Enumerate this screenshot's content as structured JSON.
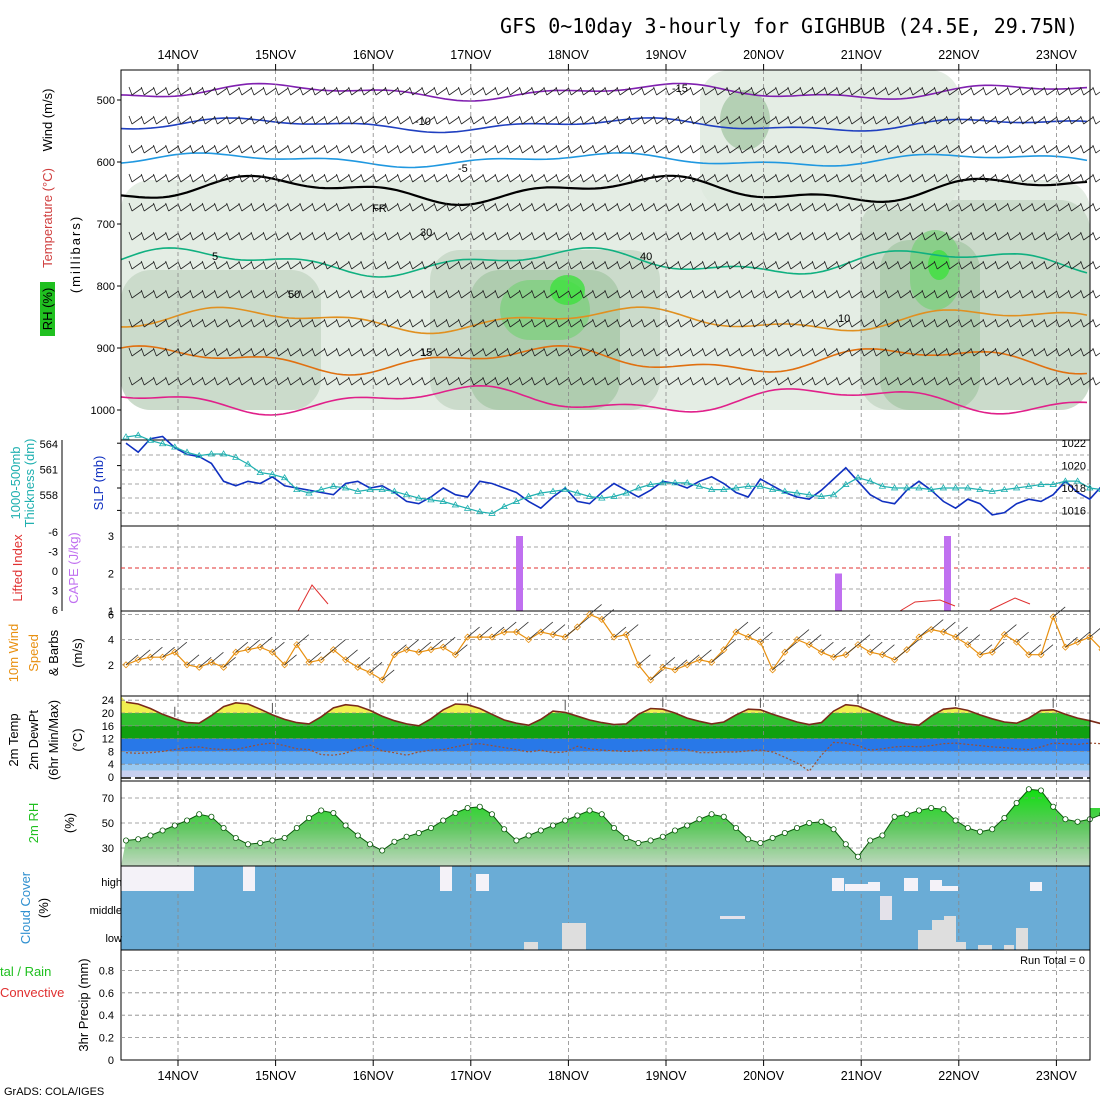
{
  "title": "GFS 0~10day 3-hourly for GIGHBUB (24.5E, 29.75N)",
  "footer": "GrADS: COLA/IGES",
  "dates": [
    "14NOV",
    "15NOV",
    "16NOV",
    "17NOV",
    "18NOV",
    "19NOV",
    "20NOV",
    "21NOV",
    "22NOV",
    "23NOV"
  ],
  "colors": {
    "slp": "#1030c0",
    "thickness": "#20b0b0",
    "cape": "#c070f0",
    "lifted": "#e03030",
    "wind": "#e89010",
    "rh": "#20c020",
    "cloud": "#6aacd6"
  },
  "panels": {
    "upper": {
      "labels": [
        "Wind (m/s)",
        "Temperature (°C)",
        "RH (%)",
        "(millibars)"
      ],
      "y_ticks": [
        "500",
        "600",
        "700",
        "800",
        "900",
        "1000"
      ],
      "contour_labels": [
        "-15",
        "-10",
        "-5",
        "FR",
        "5",
        "10",
        "15",
        "30",
        "40",
        "50"
      ]
    },
    "slp": {
      "labels": [
        "1000-500mb",
        "Thickness (dm)",
        "SLP (mb)"
      ],
      "left_ticks": [
        "564",
        "561",
        "558"
      ],
      "right_ticks": [
        "1022",
        "1020",
        "1018",
        "1016"
      ]
    },
    "cape": {
      "labels": [
        "Lifted Index",
        "CAPE (J/kg)"
      ],
      "left_ticks": [
        "-6",
        "-3",
        "0",
        "3",
        "6"
      ],
      "right_ticks": [
        "3",
        "2",
        "1"
      ]
    },
    "wind10": {
      "labels": [
        "10m Wind",
        "Speed",
        "& Barbs",
        "(m/s)"
      ],
      "ticks": [
        "6",
        "4",
        "2"
      ]
    },
    "temp2m": {
      "labels": [
        "2m Temp",
        "2m DewPt",
        "(6hr Min/Max)",
        "(°C)"
      ],
      "ticks": [
        "24",
        "20",
        "16",
        "12",
        "8",
        "4",
        "0"
      ]
    },
    "rh2m": {
      "labels": [
        "2m RH",
        "(%)"
      ],
      "ticks": [
        "70",
        "50",
        "30"
      ]
    },
    "cloud": {
      "labels": [
        "Cloud Cover",
        "(%)"
      ],
      "levels": [
        "high",
        "middle",
        "low"
      ]
    },
    "precip": {
      "labels": [
        "tal / Rain",
        "Convective",
        "3hr Precip (mm)"
      ],
      "ticks": [
        "0.8",
        "0.6",
        "0.4",
        "0.2",
        "0"
      ],
      "run_total": "Run Total = 0"
    }
  },
  "chart_data": [
    {
      "type": "line",
      "name": "slp_thickness",
      "x_unit": "3-hourly steps from 13NOV 12Z",
      "series": [
        {
          "name": "SLP (mb)",
          "axis": "right",
          "values": [
            1022.0,
            1021.2,
            1022.4,
            1022.6,
            1021.6,
            1021.0,
            1020.8,
            1020.2,
            1018.6,
            1018.2,
            1018.6,
            1018.4,
            1019.0,
            1018.2,
            1018.0,
            1017.8,
            1017.6,
            1017.4,
            1018.4,
            1018.6,
            1018.0,
            1018.2,
            1017.6,
            1016.8,
            1016.6,
            1017.2,
            1018.0,
            1017.4,
            1017.2,
            1018.6,
            1018.4,
            1018.0,
            1017.6,
            1016.8,
            1016.2,
            1017.2,
            1018.0,
            1016.8,
            1016.6,
            1017.6,
            1018.4,
            1017.8,
            1017.2,
            1017.8,
            1018.6,
            1018.4,
            1018.0,
            1018.6,
            1019.0,
            1018.4,
            1017.6,
            1017.2,
            1018.8,
            1018.2,
            1017.6,
            1017.2,
            1017.0,
            1017.8,
            1018.8,
            1019.8,
            1018.6,
            1017.4,
            1016.8,
            1016.6,
            1017.8,
            1018.6,
            1017.8,
            1016.8,
            1016.2,
            1017.0,
            1016.6,
            1015.6,
            1015.8,
            1016.6,
            1017.0,
            1016.8,
            1017.4,
            1018.6,
            1017.6,
            1017.0,
            1018.2,
            1017.8,
            1017.2,
            1017.8,
            1019.2
          ]
        },
        {
          "name": "1000-500mb Thickness (dm)",
          "axis": "left",
          "values": [
            564.8,
            565.0,
            564.4,
            564.0,
            563.6,
            563.0,
            562.6,
            562.8,
            562.8,
            562.4,
            561.6,
            560.6,
            560.4,
            560.0,
            558.6,
            558.2,
            558.6,
            559.0,
            558.8,
            558.4,
            558.6,
            558.6,
            558.4,
            558.0,
            557.6,
            557.4,
            557.2,
            556.8,
            556.4,
            556.0,
            555.8,
            556.6,
            557.2,
            557.8,
            558.2,
            558.4,
            558.6,
            558.2,
            557.8,
            557.6,
            557.8,
            558.2,
            558.8,
            559.2,
            559.4,
            559.4,
            559.4,
            559.0,
            558.6,
            558.6,
            558.8,
            559.0,
            559.0,
            558.6,
            558.4,
            558.2,
            558.0,
            557.8,
            558.0,
            559.2,
            560.0,
            559.6,
            559.0,
            558.8,
            558.8,
            558.8,
            558.6,
            558.8,
            558.8,
            558.8,
            558.6,
            558.4,
            558.6,
            558.8,
            559.0,
            559.2,
            559.2,
            559.6,
            559.6,
            558.8,
            558.6,
            558.6,
            558.8,
            558.6,
            558.4
          ]
        }
      ]
    },
    {
      "type": "bar",
      "name": "CAPE (J/kg)",
      "bars": [
        {
          "date": "17NOV 12Z",
          "value": 3
        },
        {
          "date": "20NOV 18Z",
          "value": 2
        },
        {
          "date": "21NOV 21Z",
          "value": 3
        }
      ]
    },
    {
      "type": "line",
      "name": "10m Wind Speed (m/s)",
      "values": [
        2.0,
        2.4,
        2.6,
        2.6,
        3.0,
        2.0,
        1.8,
        2.2,
        1.8,
        3.0,
        3.2,
        3.4,
        3.0,
        2.0,
        3.6,
        2.2,
        2.4,
        3.2,
        2.4,
        1.8,
        1.4,
        0.8,
        2.8,
        3.2,
        3.0,
        3.2,
        3.4,
        2.8,
        4.2,
        4.2,
        4.2,
        4.6,
        4.6,
        4.0,
        4.6,
        4.4,
        4.2,
        5.0,
        6.0,
        5.6,
        4.2,
        4.4,
        2.0,
        0.8,
        1.8,
        1.6,
        2.0,
        2.4,
        2.2,
        3.2,
        4.6,
        4.2,
        3.8,
        1.6,
        3.0,
        4.0,
        3.6,
        3.0,
        2.6,
        2.8,
        3.6,
        3.0,
        2.8,
        2.4,
        3.2,
        4.2,
        4.8,
        4.6,
        4.2,
        3.6,
        2.8,
        3.0,
        4.4,
        3.8,
        2.8,
        2.8,
        5.8,
        3.4,
        3.8,
        4.2,
        3.2,
        2.8,
        3.6,
        2.4,
        1.0,
        0.6
      ]
    },
    {
      "type": "area",
      "name": "2m Temp / DewPt (°C)",
      "series": [
        {
          "name": "2m Temp",
          "values": [
            23.4,
            22.8,
            21.4,
            19.6,
            18.2,
            17.0,
            16.8,
            19.2,
            22.0,
            23.2,
            22.8,
            21.2,
            19.4,
            18.0,
            17.0,
            16.6,
            18.8,
            21.6,
            22.6,
            22.2,
            20.8,
            19.0,
            17.6,
            16.6,
            16.0,
            18.2,
            21.0,
            22.8,
            22.6,
            21.4,
            19.6,
            17.8,
            16.8,
            16.2,
            18.0,
            20.6,
            20.2,
            19.0,
            17.8,
            17.0,
            16.4,
            16.6,
            19.6,
            21.4,
            21.2,
            20.0,
            18.4,
            17.4,
            16.6,
            17.2,
            19.4,
            21.2,
            21.0,
            19.6,
            18.4,
            17.2,
            16.4,
            17.0,
            20.6,
            22.6,
            22.2,
            20.6,
            19.0,
            17.4,
            16.6,
            16.2,
            19.0,
            21.2,
            21.6,
            20.8,
            19.4,
            18.2,
            17.2,
            16.8,
            18.4,
            20.8,
            21.0,
            19.6,
            18.4,
            17.6,
            16.6,
            16.2,
            15.6
          ]
        },
        {
          "name": "2m DewPt",
          "values": [
            7.6,
            7.4,
            7.6,
            8.0,
            8.6,
            9.2,
            9.4,
            8.8,
            8.6,
            8.6,
            9.4,
            10.2,
            10.6,
            9.8,
            8.8,
            8.6,
            7.0,
            6.8,
            7.4,
            9.0,
            10.0,
            8.2,
            7.6,
            6.8,
            7.8,
            8.4,
            8.6,
            9.4,
            10.2,
            10.4,
            9.8,
            9.2,
            8.6,
            7.8,
            8.4,
            7.6,
            7.8,
            9.6,
            8.8,
            8.4,
            8.2,
            8.0,
            8.2,
            8.4,
            8.6,
            8.8,
            8.6,
            7.6,
            7.6,
            7.8,
            7.8,
            8.2,
            8.4,
            7.8,
            6.2,
            4.4,
            1.8,
            6.8,
            10.8,
            10.6,
            9.8,
            8.4,
            8.8,
            9.4,
            9.6,
            9.4,
            9.8,
            10.4,
            10.6,
            10.2,
            9.8,
            9.4,
            9.2,
            8.8,
            8.6,
            9.4,
            10.6,
            10.4,
            10.2,
            10.6,
            10.4,
            10.2,
            10.0
          ]
        }
      ]
    },
    {
      "type": "area",
      "name": "2m RH (%)",
      "values": [
        36,
        37,
        40,
        44,
        48,
        52,
        57,
        55,
        46,
        38,
        33,
        34,
        36,
        38,
        46,
        54,
        60,
        58,
        48,
        40,
        33,
        28,
        35,
        39,
        42,
        46,
        52,
        58,
        62,
        63,
        57,
        45,
        36,
        40,
        44,
        48,
        52,
        56,
        60,
        57,
        46,
        38,
        34,
        36,
        39,
        44,
        48,
        53,
        57,
        55,
        46,
        37,
        34,
        38,
        42,
        46,
        50,
        51,
        45,
        33,
        23,
        36,
        40,
        55,
        57,
        60,
        62,
        61,
        52,
        46,
        43,
        45,
        54,
        66,
        77,
        76,
        63,
        53,
        51,
        53,
        57,
        59,
        58,
        60,
        62
      ]
    },
    {
      "type": "bar",
      "name": "Cloud Cover (%)",
      "low_level_nonzero": [
        "17NOV 06Z",
        "18NOV",
        "21NOV 12Z-22NOV 18Z"
      ],
      "high_level_nonzero": [
        "13NOV-14NOV 06Z",
        "14NOV 18Z",
        "16NOV 18Z-17NOV 03Z",
        "20NOV 18Z-22NOV 18Z",
        "23NOV 06Z"
      ]
    },
    {
      "type": "bar",
      "name": "3hr Precip (mm)",
      "ylim": [
        0,
        1
      ],
      "values": []
    }
  ]
}
